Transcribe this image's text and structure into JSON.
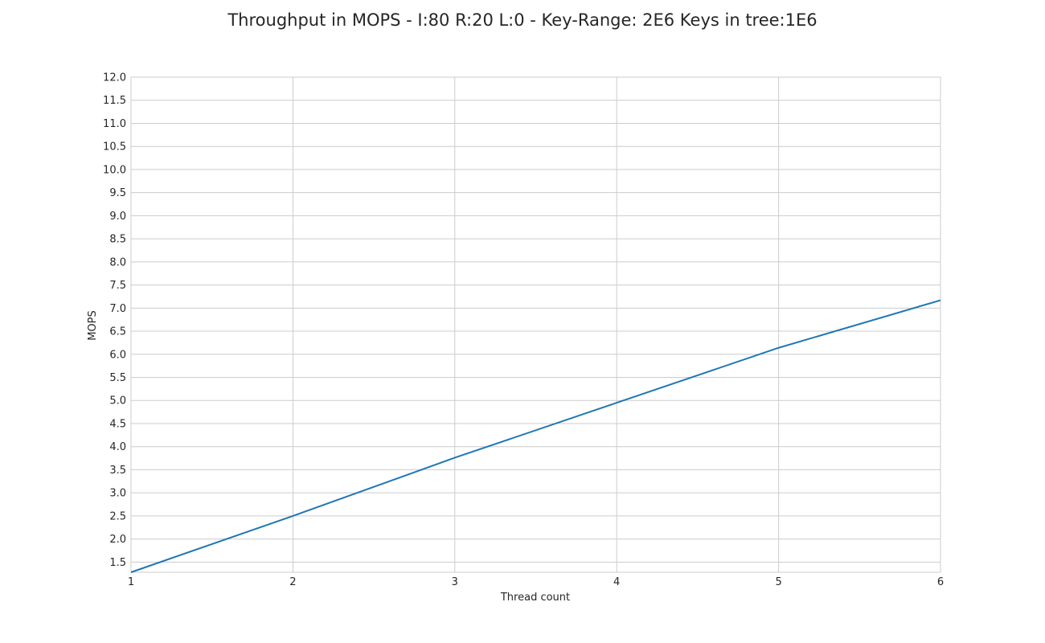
{
  "chart_data": {
    "type": "line",
    "title": "Throughput in MOPS - I:80 R:20 L:0 - Key-Range: 2E6 Keys in tree:1E6",
    "xlabel": "Thread count",
    "ylabel": "MOPS",
    "x": [
      1,
      2,
      3,
      4,
      5,
      6
    ],
    "series": [
      {
        "values": [
          1.28,
          2.5,
          3.76,
          4.95,
          6.14,
          7.17
        ],
        "color": "#1f77b4"
      }
    ],
    "xlim": [
      1,
      6
    ],
    "ylim": [
      1.28,
      12.0
    ],
    "xticks": [
      "1",
      "2",
      "3",
      "4",
      "5",
      "6"
    ],
    "yticks": [
      "1.5",
      "2.0",
      "2.5",
      "3.0",
      "3.5",
      "4.0",
      "4.5",
      "5.0",
      "5.5",
      "6.0",
      "6.5",
      "7.0",
      "7.5",
      "8.0",
      "8.5",
      "9.0",
      "9.5",
      "10.0",
      "10.5",
      "11.0",
      "11.5",
      "12.0"
    ],
    "grid": true,
    "legend": "none"
  }
}
